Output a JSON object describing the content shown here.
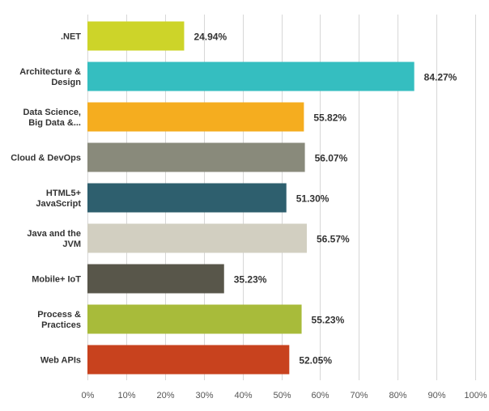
{
  "chart_data": {
    "type": "bar",
    "orientation": "horizontal",
    "categories": [
      [
        ".NET"
      ],
      [
        "Architecture &",
        "Design"
      ],
      [
        "Data Science,",
        "Big Data &..."
      ],
      [
        "Cloud & DevOps"
      ],
      [
        "HTML5+",
        "JavaScript"
      ],
      [
        "Java and the",
        "JVM"
      ],
      [
        "Mobile+ IoT"
      ],
      [
        "Process &",
        "Practices"
      ],
      [
        "Web APIs"
      ]
    ],
    "values": [
      24.94,
      84.27,
      55.82,
      56.07,
      51.3,
      56.57,
      35.23,
      55.23,
      52.05
    ],
    "value_labels": [
      "24.94%",
      "84.27%",
      "55.82%",
      "56.07%",
      "51.30%",
      "56.57%",
      "35.23%",
      "55.23%",
      "52.05%"
    ],
    "colors": [
      "#cdd429",
      "#35bec0",
      "#f5ad1f",
      "#898a7b",
      "#2e5f6e",
      "#d2cfc1",
      "#58564a",
      "#a8bb3a",
      "#c8421e"
    ],
    "xlim": [
      0,
      100
    ],
    "xticks": [
      "0%",
      "10%",
      "20%",
      "30%",
      "40%",
      "50%",
      "60%",
      "70%",
      "80%",
      "90%",
      "100%"
    ],
    "grid": "vertical",
    "gridline_color": "#d7d7d7"
  }
}
